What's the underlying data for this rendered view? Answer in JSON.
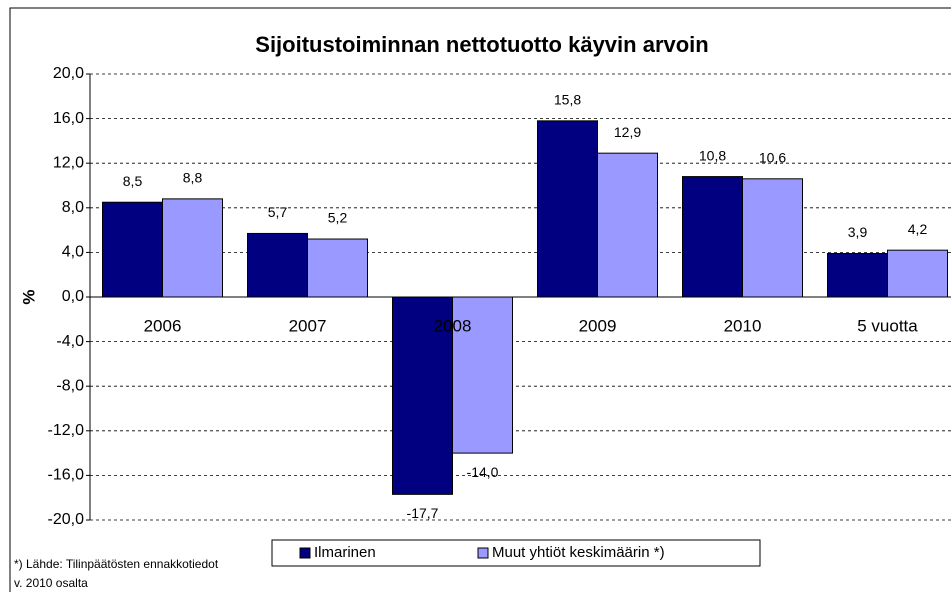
{
  "chart_data": {
    "type": "bar",
    "title": "Sijoitustoiminnan nettotuotto käyvin arvoin",
    "y_label": "%",
    "categories": [
      "2006",
      "2007",
      "2008",
      "2009",
      "2010",
      "5 vuotta"
    ],
    "series": [
      {
        "name": "Ilmarinen",
        "color": "#000080",
        "values": [
          8.5,
          5.7,
          -17.7,
          15.8,
          10.8,
          3.9
        ],
        "value_labels": [
          "8,5",
          "5,7",
          "-17,7",
          "15,8",
          "10,8",
          "3,9"
        ]
      },
      {
        "name": "Muut yhtiöt keskimäärin *)",
        "color": "#9999ff",
        "values": [
          8.8,
          5.2,
          -14.0,
          12.9,
          10.6,
          4.2
        ],
        "value_labels": [
          "8,8",
          "5,2",
          "-14,0",
          "12,9",
          "10,6",
          "4,2"
        ]
      }
    ],
    "ylim": [
      -20,
      20
    ],
    "yticks": [
      {
        "value": -20,
        "label": "-20,0"
      },
      {
        "value": -16,
        "label": "-16,0"
      },
      {
        "value": -12,
        "label": "-12,0"
      },
      {
        "value": -8,
        "label": "-8,0"
      },
      {
        "value": -4,
        "label": "-4,0"
      },
      {
        "value": 0,
        "label": "0,0"
      },
      {
        "value": 4,
        "label": "4,0"
      },
      {
        "value": 8,
        "label": "8,0"
      },
      {
        "value": 12,
        "label": "12,0"
      },
      {
        "value": 16,
        "label": "16,0"
      },
      {
        "value": 20,
        "label": "20,0"
      }
    ],
    "grid": true,
    "legend": "bottom",
    "footnote": [
      "*) Lähde: Tilinpäätösten ennakkotiedot",
      "v. 2010 osalta"
    ]
  }
}
